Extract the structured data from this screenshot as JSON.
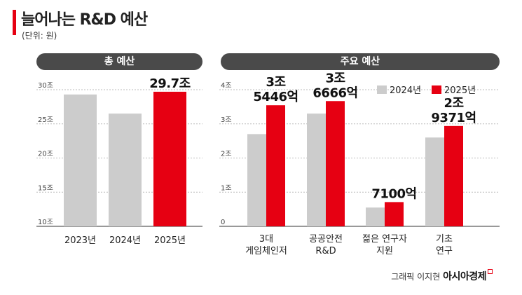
{
  "header": {
    "title": "늘어나는 R&D 예산",
    "unit": "(단위: 원)"
  },
  "credit": {
    "prefix": "그래픽 이지현",
    "brand": "아시아경제"
  },
  "colors": {
    "accent": "#e60012",
    "bar_2024": "#cccccc",
    "bar_2025": "#e60012",
    "pill": "#4a4a4a"
  },
  "chart_data": [
    {
      "type": "bar",
      "title": "총 예산",
      "categories": [
        "2023년",
        "2024년",
        "2025년"
      ],
      "values": [
        29.3,
        26.5,
        29.7
      ],
      "highlight_index": 2,
      "data_labels": [
        "",
        "",
        "29.7조"
      ],
      "ylim": [
        10,
        30
      ],
      "y_ticks": [
        10,
        15,
        20,
        25,
        30
      ],
      "y_tick_labels": [
        "10조",
        "15조",
        "20조",
        "25조",
        "30조"
      ],
      "xlabel": "",
      "ylabel": "",
      "grid": "dashed horizontal"
    },
    {
      "type": "bar",
      "title": "주요 예산",
      "categories": [
        [
          "3대",
          "게임체인저"
        ],
        [
          "공공안전",
          "R&D"
        ],
        [
          "젊은 연구자",
          "지원"
        ],
        [
          "기초",
          "연구"
        ]
      ],
      "series": [
        {
          "name": "2024년",
          "values": [
            2.7,
            3.3,
            0.55,
            2.6
          ]
        },
        {
          "name": "2025년",
          "values": [
            3.5446,
            3.6666,
            0.71,
            2.9371
          ]
        }
      ],
      "data_labels_2025": [
        [
          "3조",
          "5446억"
        ],
        [
          "3조",
          "6666억"
        ],
        [
          "7100억"
        ],
        [
          "2조",
          "9371억"
        ]
      ],
      "ylim": [
        0,
        4
      ],
      "y_ticks": [
        0,
        1,
        2,
        3,
        4
      ],
      "y_tick_labels": [
        "0",
        "1조",
        "2조",
        "3조",
        "4조"
      ],
      "legend_position": "top-right",
      "xlabel": "",
      "ylabel": "",
      "grid": "dashed horizontal"
    }
  ]
}
